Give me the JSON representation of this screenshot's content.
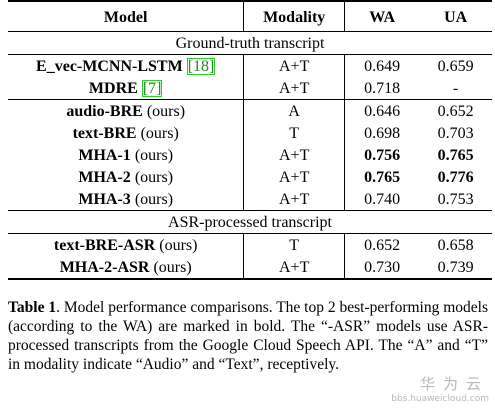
{
  "table": {
    "headers": {
      "model": "Model",
      "modality": "Modality",
      "wa": "WA",
      "ua": "UA"
    },
    "sections": [
      {
        "title": "Ground-truth transcript",
        "groups": [
          [
            {
              "name": "E_vec-MCNN-LSTM",
              "ref": "[18]",
              "suffix": "",
              "modality": "A+T",
              "wa": "0.649",
              "ua": "0.659",
              "wa_bold": false,
              "ua_bold": false
            },
            {
              "name": "MDRE",
              "ref": "[7]",
              "suffix": "",
              "modality": "A+T",
              "wa": "0.718",
              "ua": "-",
              "wa_bold": false,
              "ua_bold": false
            }
          ],
          [
            {
              "name": "audio-BRE",
              "ref": "",
              "suffix": "(ours)",
              "modality": "A",
              "wa": "0.646",
              "ua": "0.652",
              "wa_bold": false,
              "ua_bold": false
            },
            {
              "name": "text-BRE",
              "ref": "",
              "suffix": "(ours)",
              "modality": "T",
              "wa": "0.698",
              "ua": "0.703",
              "wa_bold": false,
              "ua_bold": false
            },
            {
              "name": "MHA-1",
              "ref": "",
              "suffix": "(ours)",
              "modality": "A+T",
              "wa": "0.756",
              "ua": "0.765",
              "wa_bold": true,
              "ua_bold": true
            },
            {
              "name": "MHA-2",
              "ref": "",
              "suffix": "(ours)",
              "modality": "A+T",
              "wa": "0.765",
              "ua": "0.776",
              "wa_bold": true,
              "ua_bold": true
            },
            {
              "name": "MHA-3",
              "ref": "",
              "suffix": "(ours)",
              "modality": "A+T",
              "wa": "0.740",
              "ua": "0.753",
              "wa_bold": false,
              "ua_bold": false
            }
          ]
        ]
      },
      {
        "title": "ASR-processed transcript",
        "groups": [
          [
            {
              "name": "text-BRE-ASR",
              "ref": "",
              "suffix": "(ours)",
              "modality": "T",
              "wa": "0.652",
              "ua": "0.658",
              "wa_bold": false,
              "ua_bold": false
            },
            {
              "name": "MHA-2-ASR",
              "ref": "",
              "suffix": "(ours)",
              "modality": "A+T",
              "wa": "0.730",
              "ua": "0.739",
              "wa_bold": false,
              "ua_bold": false
            }
          ]
        ]
      }
    ]
  },
  "caption": {
    "label": "Table 1",
    "text": ".   Model performance comparisons. The top 2 best-performing models (according to the WA) are marked in bold. The “-ASR” models use ASR-processed transcripts from the Google Cloud Speech API. The “A” and “T” in modality indicate “Audio” and “Text”, receptively."
  },
  "watermark": {
    "logo_text": "华为云",
    "url": "bbs.huaweicloud.com"
  }
}
